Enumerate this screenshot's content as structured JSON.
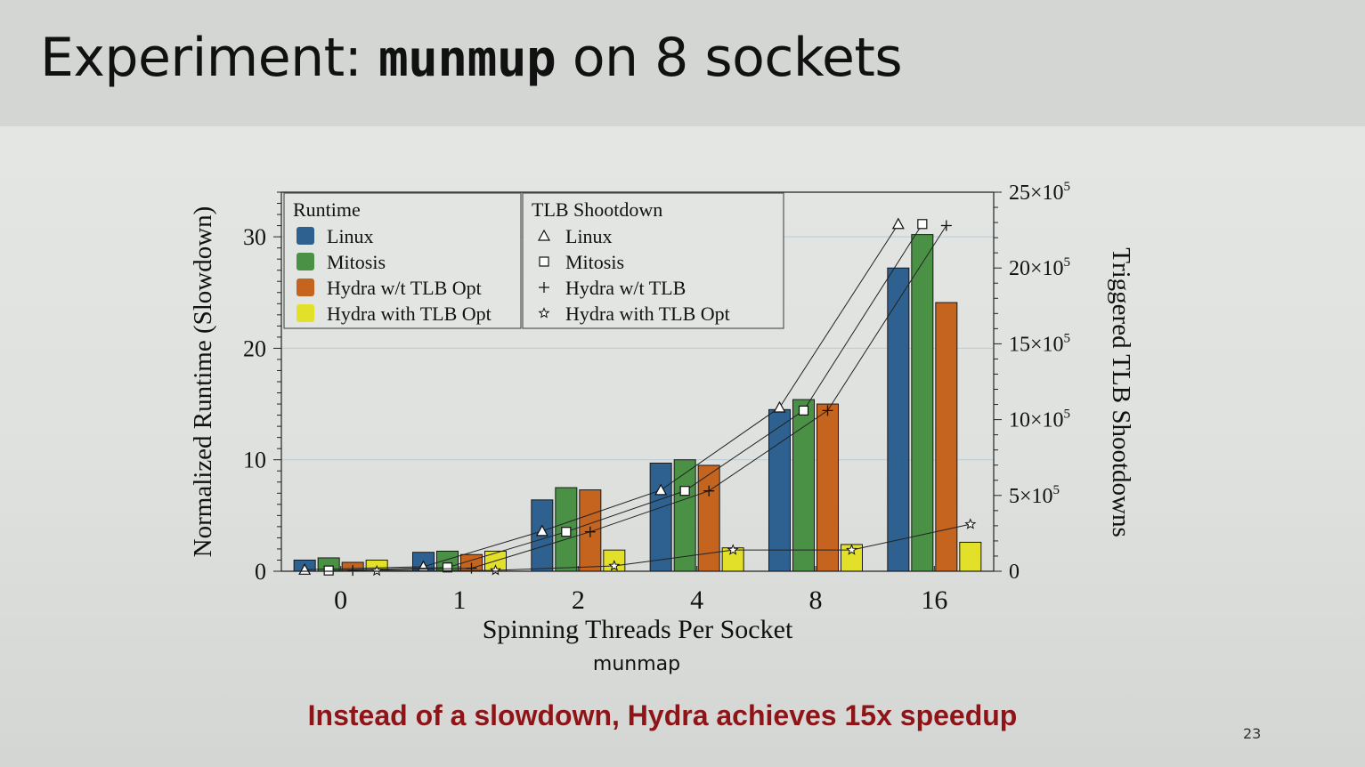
{
  "slide": {
    "title_prefix": "Experiment: ",
    "title_code": "munmup",
    "title_suffix": " on 8 sockets",
    "caption": "munmap",
    "callout": "Instead of a slowdown, Hydra achieves 15x speedup",
    "page_number": "23"
  },
  "colors": {
    "linux": "#2e6190",
    "mitosis": "#4a9146",
    "hydra_wt": "#c4641f",
    "hydra_with": "#e2e028",
    "callout": "#8e1418",
    "gridline": "#b8cbd6"
  },
  "chart_data": {
    "type": "bar",
    "categories": [
      "0",
      "1",
      "2",
      "4",
      "8",
      "16"
    ],
    "xlabel": "Spinning Threads Per Socket",
    "ylabel": "Normalized Runtime (Slowdown)",
    "y2label": "Triggered TLB Shootdowns",
    "ylim": [
      0,
      34
    ],
    "yticks": [
      0,
      10,
      20,
      30
    ],
    "ytick_labels": [
      "0",
      "10",
      "20",
      "30"
    ],
    "y2lim": [
      0,
      2500000
    ],
    "y2ticks": [
      0,
      500000,
      1000000,
      1500000,
      2000000,
      2500000
    ],
    "y2tick_labels": [
      {
        "base": "0",
        "exp": ""
      },
      {
        "base": "5×10",
        "exp": "5"
      },
      {
        "base": "10×10",
        "exp": "5"
      },
      {
        "base": "15×10",
        "exp": "5"
      },
      {
        "base": "20×10",
        "exp": "5"
      },
      {
        "base": "25×10",
        "exp": "5"
      }
    ],
    "grid": true,
    "legend_groups": [
      {
        "title": "Runtime",
        "entries": [
          "Linux",
          "Mitosis",
          "Hydra w/t TLB Opt",
          "Hydra with TLB Opt"
        ]
      },
      {
        "title": "TLB Shootdown",
        "entries": [
          "Linux",
          "Mitosis",
          "Hydra w/t TLB",
          "Hydra with TLB Opt"
        ]
      }
    ],
    "legend_placement": "top-left",
    "series": [
      {
        "name": "Linux",
        "axis": "left",
        "kind": "bar",
        "values": [
          1.0,
          1.7,
          6.4,
          9.7,
          14.5,
          27.2
        ]
      },
      {
        "name": "Mitosis",
        "axis": "left",
        "kind": "bar",
        "values": [
          1.2,
          1.8,
          7.5,
          10.0,
          15.4,
          30.2
        ]
      },
      {
        "name": "Hydra w/t TLB Opt",
        "axis": "left",
        "kind": "bar",
        "values": [
          0.8,
          1.5,
          7.3,
          9.5,
          15.0,
          24.1
        ]
      },
      {
        "name": "Hydra with TLB Opt",
        "axis": "left",
        "kind": "bar",
        "values": [
          1.0,
          1.8,
          1.9,
          2.1,
          2.4,
          2.6
        ]
      },
      {
        "name": "Linux",
        "axis": "right",
        "kind": "line",
        "marker": "triangle",
        "values": [
          10000,
          30000,
          265000,
          535000,
          1080000,
          2290000
        ]
      },
      {
        "name": "Mitosis",
        "axis": "right",
        "kind": "line",
        "marker": "square",
        "values": [
          5000,
          25000,
          260000,
          530000,
          1060000,
          2290000
        ]
      },
      {
        "name": "Hydra w/t TLB",
        "axis": "right",
        "kind": "line",
        "marker": "plus",
        "values": [
          5000,
          20000,
          260000,
          530000,
          1060000,
          2280000
        ]
      },
      {
        "name": "Hydra with TLB Opt",
        "axis": "right",
        "kind": "line",
        "marker": "star",
        "values": [
          2000,
          6000,
          35000,
          140000,
          140000,
          310000
        ]
      }
    ]
  }
}
